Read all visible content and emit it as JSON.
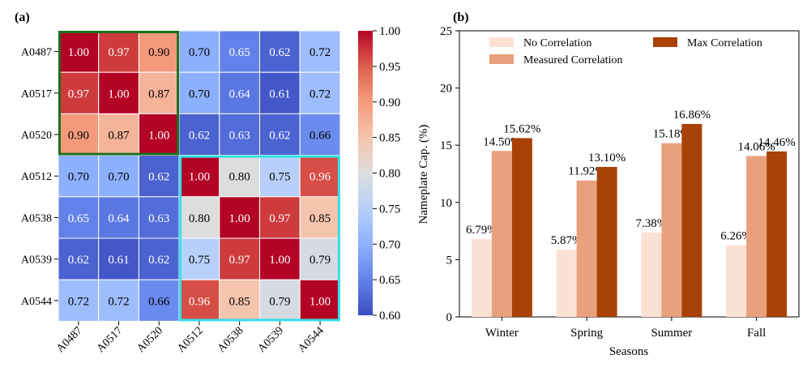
{
  "chart_data": [
    {
      "type": "heatmap",
      "panel_label": "(a)",
      "rows": [
        "A0487",
        "A0517",
        "A0520",
        "A0512",
        "A0538",
        "A0539",
        "A0544"
      ],
      "columns": [
        "A0487",
        "A0517",
        "A0520",
        "A0512",
        "A0538",
        "A0539",
        "A0544"
      ],
      "values": [
        [
          1.0,
          0.97,
          0.9,
          0.7,
          0.65,
          0.62,
          0.72
        ],
        [
          0.97,
          1.0,
          0.87,
          0.7,
          0.64,
          0.61,
          0.72
        ],
        [
          0.9,
          0.87,
          1.0,
          0.62,
          0.63,
          0.62,
          0.66
        ],
        [
          0.7,
          0.7,
          0.62,
          1.0,
          0.8,
          0.75,
          0.96
        ],
        [
          0.65,
          0.64,
          0.63,
          0.8,
          1.0,
          0.97,
          0.85
        ],
        [
          0.62,
          0.61,
          0.62,
          0.75,
          0.97,
          1.0,
          0.79
        ],
        [
          0.72,
          0.72,
          0.66,
          0.96,
          0.85,
          0.79,
          1.0
        ]
      ],
      "colorbar": {
        "min": 0.6,
        "max": 1.0,
        "ticks": [
          "1.00",
          "0.95",
          "0.90",
          "0.85",
          "0.80",
          "0.75",
          "0.70",
          "0.65",
          "0.60"
        ],
        "colormap": "coolwarm"
      },
      "highlight_groups": [
        {
          "members": [
            "A0487",
            "A0517",
            "A0520"
          ],
          "color": "#1e6e1e"
        },
        {
          "members": [
            "A0512",
            "A0538",
            "A0539",
            "A0544"
          ],
          "color": "#33e0e8"
        }
      ]
    },
    {
      "type": "bar",
      "panel_label": "(b)",
      "categories": [
        "Winter",
        "Spring",
        "Summer",
        "Fall"
      ],
      "series": [
        {
          "name": "No Correlation",
          "values": [
            6.79,
            5.87,
            7.38,
            6.26
          ],
          "labels": [
            "6.79%",
            "5.87%",
            "7.38%",
            "6.26%"
          ],
          "color": "#fbe1d4"
        },
        {
          "name": "Measured Correlation",
          "values": [
            14.5,
            11.92,
            15.18,
            14.06
          ],
          "labels": [
            "14.50%",
            "11.92%",
            "15.18%",
            "14.06%"
          ],
          "color": "#e9a07c"
        },
        {
          "name": "Max Correlation",
          "values": [
            15.62,
            13.1,
            16.86,
            14.46
          ],
          "labels": [
            "15.62%",
            "13.10%",
            "16.86%",
            "14.46%"
          ],
          "color": "#a84206"
        }
      ],
      "xlabel": "Seasons",
      "ylabel": "Nameplate Cap. (%)",
      "ylim": [
        0,
        25
      ],
      "yticks": [
        "0",
        "5",
        "10",
        "15",
        "20",
        "25"
      ],
      "legend": "top-center, two columns"
    }
  ]
}
